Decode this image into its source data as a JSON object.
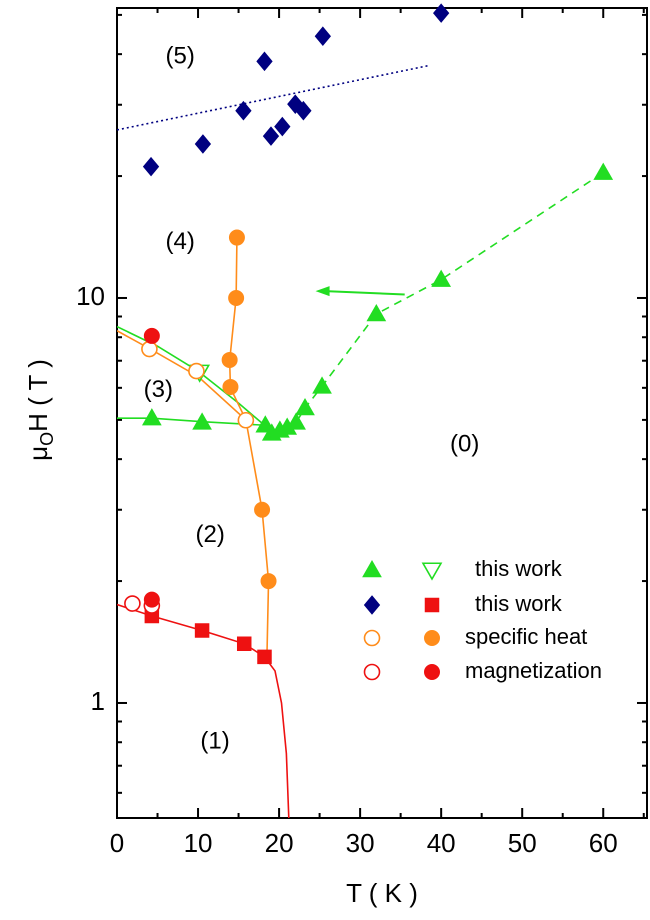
{
  "chart_data": {
    "type": "scatter",
    "xlabel": "T ( K )",
    "ylabel": [
      "μ",
      "O",
      "H ( T )"
    ],
    "xlim": [
      0,
      65.4
    ],
    "ylim": [
      0.52,
      52
    ],
    "log_y": true,
    "xticks": [
      0,
      10,
      20,
      30,
      40,
      50,
      60
    ],
    "minor_xticks": [
      5,
      15,
      25,
      35,
      45,
      55,
      65
    ],
    "yticks": [
      1,
      10
    ],
    "minor_yticks": [
      0.6,
      0.7,
      0.8,
      0.9,
      2,
      3,
      4,
      5,
      6,
      7,
      8,
      9,
      20,
      30,
      40,
      50
    ],
    "legend_labels": [
      "this work",
      "this work",
      "specific heat",
      "magnetization"
    ],
    "series": [
      {
        "legend": 0,
        "marker": "triangle",
        "filled": true,
        "color": "#22dd22",
        "x": [
          4.3,
          10.5,
          18.3,
          19.1,
          20.1,
          21,
          22.1,
          23.2,
          25.3,
          32,
          40,
          60
        ],
        "values": [
          5.05,
          4.93,
          4.85,
          4.63,
          4.71,
          4.79,
          4.93,
          5.35,
          6.05,
          9.13,
          11.1,
          20.4
        ]
      },
      {
        "legend": 0,
        "marker": "triangle-down",
        "filled": false,
        "color": "#22dd22",
        "x": [
          10.2
        ],
        "values": [
          6.56
        ]
      },
      {
        "legend": 1,
        "marker": "diamond",
        "filled": true,
        "color": "#000080",
        "x": [
          4.2,
          10.6,
          18.2,
          15.6,
          19.0,
          20.4,
          22,
          23,
          25.4,
          40
        ],
        "values": [
          21.1,
          24.0,
          38.4,
          29.0,
          25.1,
          26.5,
          30.1,
          29.0,
          44.3,
          50.5
        ]
      },
      {
        "legend": 1,
        "marker": "square",
        "filled": true,
        "color": "#ee1111",
        "x": [
          4.3,
          10.5,
          15.7,
          18.2
        ],
        "values": [
          1.64,
          1.51,
          1.4,
          1.3
        ]
      },
      {
        "legend": 2,
        "marker": "circle",
        "filled": false,
        "color": "#ff8c1a",
        "x": [
          4.0,
          9.8,
          15.9
        ],
        "values": [
          7.48,
          6.6,
          4.99
        ]
      },
      {
        "legend": 2,
        "marker": "circle",
        "filled": true,
        "color": "#ff8c1a",
        "x": [
          14.8,
          14.7,
          13.9,
          14,
          17.9,
          18.7
        ],
        "values": [
          14.1,
          10,
          7.03,
          6.03,
          3.0,
          2.0
        ]
      },
      {
        "legend": 3,
        "marker": "circle",
        "filled": false,
        "color": "#ee1111",
        "x": [
          1.9,
          4.3
        ],
        "values": [
          1.76,
          1.74
        ]
      },
      {
        "legend": 3,
        "marker": "circle",
        "filled": true,
        "color": "#ee1111",
        "x": [
          4.3,
          4.3
        ],
        "values": [
          8.06,
          1.8
        ]
      }
    ],
    "curves": [
      {
        "color": "#22dd22",
        "dash": "",
        "x": [
          0,
          5,
          10,
          15,
          19
        ],
        "values": [
          8.5,
          7.6,
          6.6,
          5.5,
          4.7
        ]
      },
      {
        "color": "#22dd22",
        "dash": "",
        "x": [
          0,
          4.3,
          10.5,
          18.3
        ],
        "values": [
          5.05,
          5.05,
          4.95,
          4.85
        ]
      },
      {
        "color": "#22dd22",
        "dash": "8 6",
        "x": [
          19.1,
          20.1,
          21,
          22.1,
          23.2,
          25.3,
          32,
          40,
          60
        ],
        "values": [
          4.63,
          4.71,
          4.79,
          4.93,
          5.35,
          6.05,
          9.13,
          11.1,
          20.4
        ]
      },
      {
        "color": "#ff8c1a",
        "dash": "",
        "x": [
          0,
          4,
          10,
          15.9,
          17.9,
          18.7,
          18.5
        ],
        "values": [
          8.3,
          7.5,
          6.4,
          5.0,
          3.0,
          2.0,
          1.3
        ]
      },
      {
        "color": "#ff8c1a",
        "dash": "",
        "x": [
          15.1,
          14.8,
          14.7,
          13.9,
          14,
          15.9
        ],
        "values": [
          14.5,
          14.1,
          10,
          7.0,
          6.0,
          5.0
        ]
      },
      {
        "color": "#ee1111",
        "dash": "",
        "x": [
          0,
          4.3,
          10.5,
          15.7,
          18.2,
          19.5,
          20.3,
          20.9,
          21.2
        ],
        "values": [
          1.75,
          1.64,
          1.51,
          1.4,
          1.3,
          1.2,
          1.0,
          0.75,
          0.52
        ]
      },
      {
        "color": "#000080",
        "dash": "2 3",
        "x": [
          0,
          38.5
        ],
        "values": [
          26,
          37.5
        ]
      }
    ],
    "arrow": {
      "color": "#22dd22",
      "x": [
        35.5,
        24.5
      ],
      "values": [
        10.2,
        10.4
      ]
    },
    "annotations": [
      {
        "text": "(5)",
        "x": 7.8,
        "y": 39.3
      },
      {
        "text": "(4)",
        "x": 7.8,
        "y": 13.7
      },
      {
        "text": "(3)",
        "x": 5.1,
        "y": 5.9
      },
      {
        "text": "(2)",
        "x": 11.5,
        "y": 2.59
      },
      {
        "text": "(1)",
        "x": 12.1,
        "y": 0.8
      },
      {
        "text": "(0)",
        "x": 42.9,
        "y": 4.33
      }
    ]
  }
}
